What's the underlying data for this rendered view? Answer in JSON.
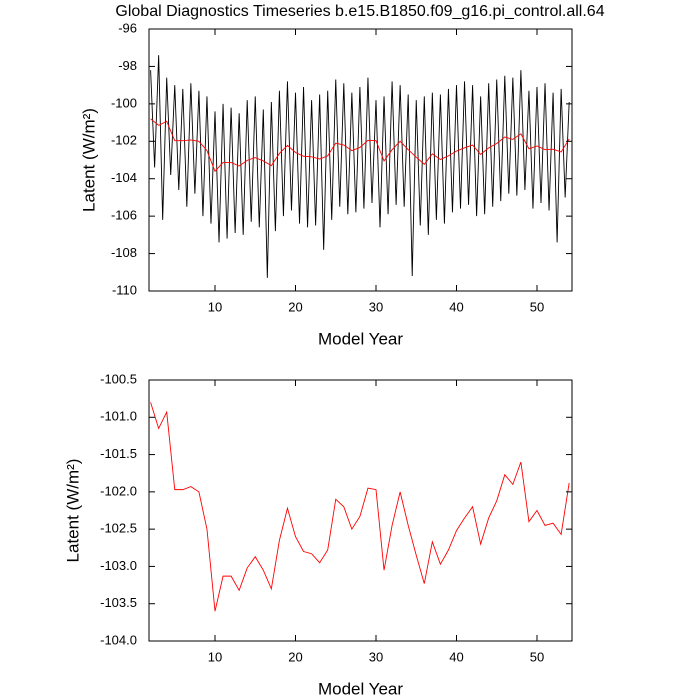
{
  "chart_data": [
    {
      "type": "line",
      "title": "Global Diagnostics Timeseries b.e15.B1850.f09_g16.pi_control.all.64",
      "y_label": "Latent (W/m²)",
      "x_label": "Model Year",
      "xlim": [
        1.8,
        54.35
      ],
      "xticks": [
        10,
        20,
        30,
        40,
        50
      ],
      "ylim": [
        -110,
        -96
      ],
      "yticks": [
        -110,
        -108,
        -106,
        -104,
        -102,
        -100,
        -98,
        -96
      ],
      "series": [
        {
          "color": "#000000",
          "x": [
            2,
            2.5,
            3,
            3.5,
            4,
            4.5,
            5,
            5.5,
            6,
            6.5,
            7,
            7.5,
            8,
            8.5,
            9,
            9.5,
            10,
            10.5,
            11,
            11.5,
            12,
            12.5,
            13,
            13.5,
            14,
            14.5,
            15,
            15.5,
            16,
            16.5,
            17,
            17.5,
            18,
            18.5,
            19,
            19.5,
            20,
            20.5,
            21,
            21.5,
            22,
            22.5,
            23,
            23.5,
            24,
            24.5,
            25,
            25.5,
            26,
            26.5,
            27,
            27.5,
            28,
            28.5,
            29,
            29.5,
            30,
            30.5,
            31,
            31.5,
            32,
            32.5,
            33,
            33.5,
            34,
            34.5,
            35,
            35.5,
            36,
            36.5,
            37,
            37.5,
            38,
            38.5,
            39,
            39.5,
            40,
            40.5,
            41,
            41.5,
            42,
            42.5,
            43,
            43.5,
            44,
            44.5,
            45,
            45.5,
            46,
            46.5,
            47,
            47.5,
            48,
            48.5,
            49,
            49.5,
            50,
            50.5,
            51,
            51.5,
            52,
            52.5,
            53,
            53.5,
            54
          ],
          "values": [
            -98.2,
            -103.4,
            -97.4,
            -106.2,
            -98.6,
            -103.8,
            -99.0,
            -104.6,
            -99.2,
            -105.5,
            -98.9,
            -104.8,
            -99.3,
            -106.0,
            -99.6,
            -106.4,
            -100.4,
            -107.4,
            -100.0,
            -107.2,
            -100.2,
            -106.9,
            -100.5,
            -107.0,
            -99.8,
            -106.3,
            -99.6,
            -106.6,
            -100.3,
            -109.3,
            -99.9,
            -106.8,
            -99.3,
            -106.0,
            -98.8,
            -105.7,
            -99.4,
            -106.4,
            -99.1,
            -106.6,
            -99.8,
            -106.5,
            -99.5,
            -107.8,
            -99.3,
            -106.2,
            -98.7,
            -105.5,
            -98.9,
            -105.9,
            -99.4,
            -105.8,
            -99.1,
            -105.6,
            -98.6,
            -105.3,
            -99.8,
            -106.6,
            -99.6,
            -105.9,
            -98.8,
            -105.4,
            -99.0,
            -105.5,
            -99.5,
            -109.2,
            -99.8,
            -106.5,
            -99.6,
            -107.0,
            -99.4,
            -106.2,
            -99.5,
            -106.4,
            -99.2,
            -105.8,
            -99.0,
            -105.6,
            -98.8,
            -105.4,
            -99.0,
            -106.0,
            -99.6,
            -105.9,
            -98.9,
            -105.5,
            -98.7,
            -105.2,
            -98.5,
            -104.8,
            -98.6,
            -104.9,
            -98.2,
            -104.6,
            -99.3,
            -105.6,
            -99.1,
            -105.3,
            -98.9,
            -105.7,
            -99.4,
            -107.4,
            -99.2,
            -105.0,
            -99.9
          ]
        },
        {
          "color": "#ff0000",
          "x": [
            2,
            3,
            4,
            5,
            6,
            7,
            8,
            9,
            10,
            11,
            12,
            13,
            14,
            15,
            16,
            17,
            18,
            19,
            20,
            21,
            22,
            23,
            24,
            25,
            26,
            27,
            28,
            29,
            30,
            31,
            32,
            33,
            34,
            35,
            36,
            37,
            38,
            39,
            40,
            41,
            42,
            43,
            44,
            45,
            46,
            47,
            48,
            49,
            50,
            51,
            52,
            53,
            54
          ],
          "values": [
            -100.8,
            -101.15,
            -100.93,
            -101.97,
            -101.97,
            -101.93,
            -102.0,
            -102.5,
            -103.6,
            -103.13,
            -103.13,
            -103.32,
            -103.02,
            -102.87,
            -103.05,
            -103.3,
            -102.65,
            -102.22,
            -102.6,
            -102.8,
            -102.83,
            -102.95,
            -102.78,
            -102.1,
            -102.2,
            -102.5,
            -102.33,
            -101.95,
            -101.97,
            -103.05,
            -102.45,
            -102.0,
            -102.45,
            -102.85,
            -103.23,
            -102.67,
            -102.97,
            -102.78,
            -102.52,
            -102.35,
            -102.2,
            -102.7,
            -102.35,
            -102.12,
            -101.77,
            -101.9,
            -101.6,
            -102.4,
            -102.25,
            -102.45,
            -102.42,
            -102.57,
            -101.88
          ]
        }
      ]
    },
    {
      "type": "line",
      "y_label": "Latent (W/m²)",
      "x_label": "Model Year",
      "xlim": [
        1.8,
        54.35
      ],
      "xticks": [
        10,
        20,
        30,
        40,
        50
      ],
      "ylim": [
        -104,
        -100.5
      ],
      "yticks": [
        {
          "value": -104,
          "label": "-104.0"
        },
        -103.5,
        {
          "value": -103,
          "label": "-103.0"
        },
        -102.5,
        {
          "value": -102,
          "label": "-102.0"
        },
        -101.5,
        {
          "value": -101,
          "label": "-101.0"
        },
        -100.5
      ],
      "series": [
        {
          "color": "#ff0000",
          "x": [
            2,
            3,
            4,
            5,
            6,
            7,
            8,
            9,
            10,
            11,
            12,
            13,
            14,
            15,
            16,
            17,
            18,
            19,
            20,
            21,
            22,
            23,
            24,
            25,
            26,
            27,
            28,
            29,
            30,
            31,
            32,
            33,
            34,
            35,
            36,
            37,
            38,
            39,
            40,
            41,
            42,
            43,
            44,
            45,
            46,
            47,
            48,
            49,
            50,
            51,
            52,
            53,
            54
          ],
          "values": [
            -100.8,
            -101.15,
            -100.93,
            -101.97,
            -101.97,
            -101.93,
            -102.0,
            -102.5,
            -103.6,
            -103.13,
            -103.13,
            -103.32,
            -103.02,
            -102.87,
            -103.05,
            -103.3,
            -102.65,
            -102.22,
            -102.6,
            -102.8,
            -102.83,
            -102.95,
            -102.78,
            -102.1,
            -102.2,
            -102.5,
            -102.33,
            -101.95,
            -101.97,
            -103.05,
            -102.45,
            -102.0,
            -102.45,
            -102.85,
            -103.23,
            -102.67,
            -102.97,
            -102.78,
            -102.52,
            -102.35,
            -102.2,
            -102.7,
            -102.35,
            -102.12,
            -101.77,
            -101.9,
            -101.6,
            -102.4,
            -102.25,
            -102.45,
            -102.42,
            -102.57,
            -101.88
          ]
        }
      ]
    }
  ]
}
